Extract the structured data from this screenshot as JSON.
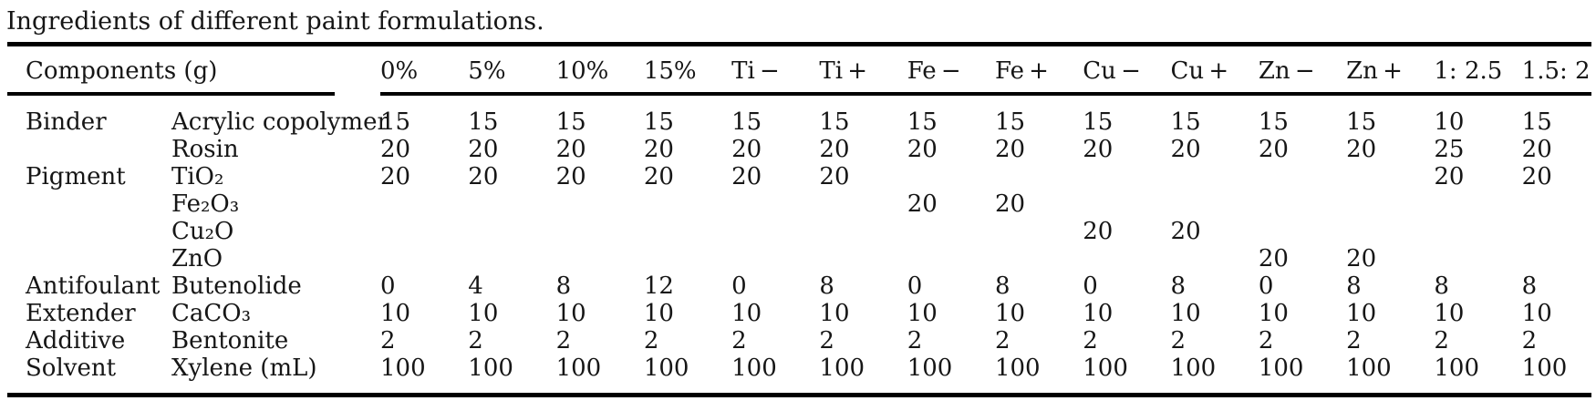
{
  "title": "Ingredients of different paint formulations.",
  "colors": {
    "text": "#161616",
    "rule": "#000000",
    "background": "#ffffff"
  },
  "table": {
    "header": {
      "components_label": "Components (g)",
      "columns": [
        "0%",
        "5%",
        "10%",
        "15%",
        "Ti −",
        "Ti +",
        "Fe −",
        "Fe +",
        "Cu −",
        "Cu +",
        "Zn −",
        "Zn +",
        "1: 2.5",
        "1.5: 2"
      ]
    },
    "rows": [
      {
        "category": "Binder",
        "component": "Acrylic copolymer",
        "values": [
          "15",
          "15",
          "15",
          "15",
          "15",
          "15",
          "15",
          "15",
          "15",
          "15",
          "15",
          "15",
          "10",
          "15"
        ]
      },
      {
        "category": "",
        "component": "Rosin",
        "values": [
          "20",
          "20",
          "20",
          "20",
          "20",
          "20",
          "20",
          "20",
          "20",
          "20",
          "20",
          "20",
          "25",
          "20"
        ]
      },
      {
        "category": "Pigment",
        "component": "TiO₂",
        "values": [
          "20",
          "20",
          "20",
          "20",
          "20",
          "20",
          "",
          "",
          "",
          "",
          "",
          "",
          "20",
          "20"
        ]
      },
      {
        "category": "",
        "component": "Fe₂O₃",
        "values": [
          "",
          "",
          "",
          "",
          "",
          "",
          "20",
          "20",
          "",
          "",
          "",
          "",
          "",
          ""
        ]
      },
      {
        "category": "",
        "component": "Cu₂O",
        "values": [
          "",
          "",
          "",
          "",
          "",
          "",
          "",
          "",
          "20",
          "20",
          "",
          "",
          "",
          ""
        ]
      },
      {
        "category": "",
        "component": "ZnO",
        "values": [
          "",
          "",
          "",
          "",
          "",
          "",
          "",
          "",
          "",
          "",
          "20",
          "20",
          "",
          ""
        ]
      },
      {
        "category": "Antifoulant",
        "component": "Butenolide",
        "values": [
          "0",
          "4",
          "8",
          "12",
          "0",
          "8",
          "0",
          "8",
          "0",
          "8",
          "0",
          "8",
          "8",
          "8"
        ]
      },
      {
        "category": "Extender",
        "component": "CaCO₃",
        "values": [
          "10",
          "10",
          "10",
          "10",
          "10",
          "10",
          "10",
          "10",
          "10",
          "10",
          "10",
          "10",
          "10",
          "10"
        ]
      },
      {
        "category": "Additive",
        "component": "Bentonite",
        "values": [
          "2",
          "2",
          "2",
          "2",
          "2",
          "2",
          "2",
          "2",
          "2",
          "2",
          "2",
          "2",
          "2",
          "2"
        ]
      },
      {
        "category": "Solvent",
        "component": "Xylene (mL)",
        "values": [
          "100",
          "100",
          "100",
          "100",
          "100",
          "100",
          "100",
          "100",
          "100",
          "100",
          "100",
          "100",
          "100",
          "100"
        ]
      }
    ]
  }
}
